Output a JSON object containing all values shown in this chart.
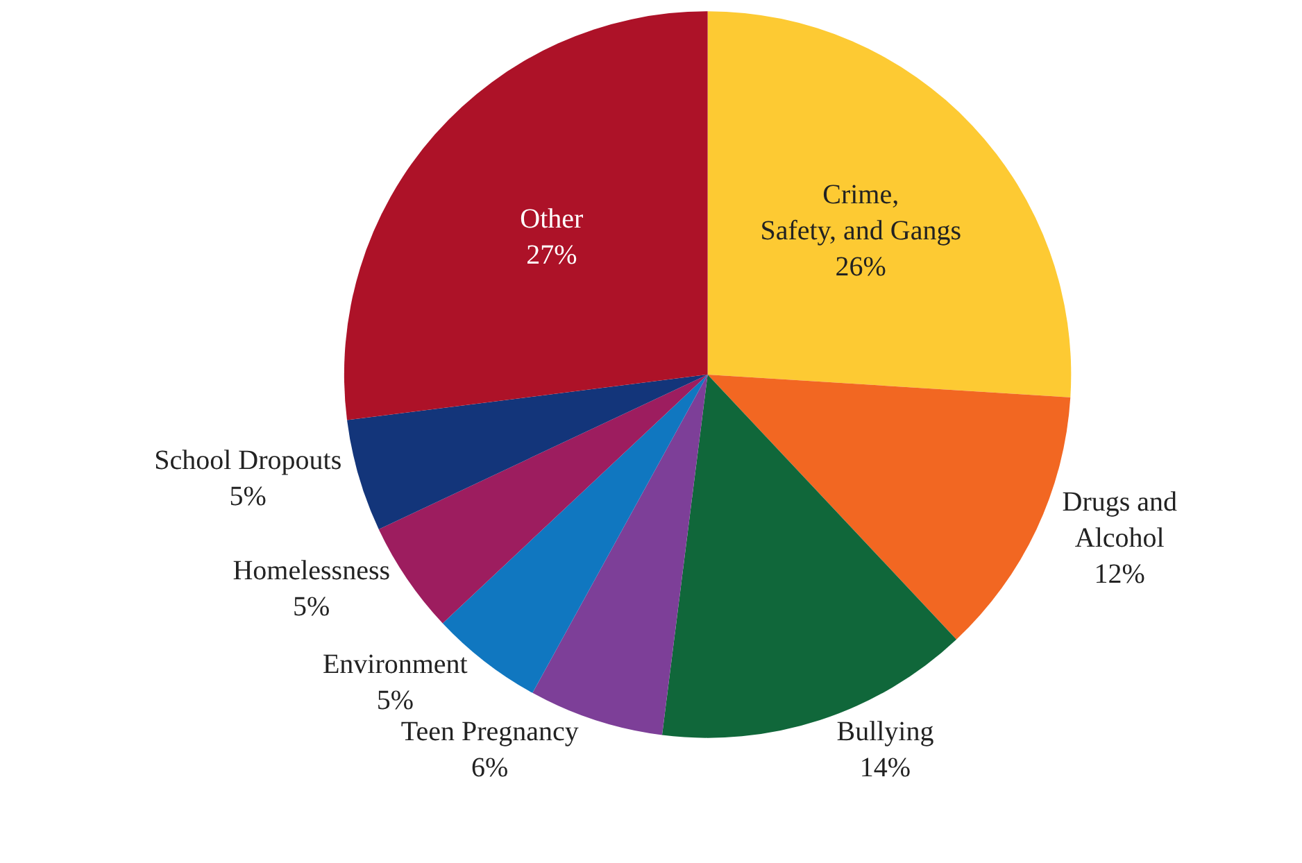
{
  "chart_data": {
    "type": "pie",
    "categories": [
      "Crime,\nSafety, and Gangs",
      "Drugs and\nAlcohol",
      "Bullying",
      "Teen Pregnancy",
      "Environment",
      "Homelessness",
      "School Dropouts",
      "Other"
    ],
    "values": [
      26,
      12,
      14,
      6,
      5,
      5,
      5,
      27
    ],
    "value_labels": [
      "26%",
      "12%",
      "14%",
      "6%",
      "5%",
      "5%",
      "5%",
      "27%"
    ],
    "colors": [
      "#fdca33",
      "#f26722",
      "#10673a",
      "#7d3f98",
      "#1077c0",
      "#9d1d5f",
      "#13357a",
      "#ad1228"
    ],
    "legend": false
  }
}
